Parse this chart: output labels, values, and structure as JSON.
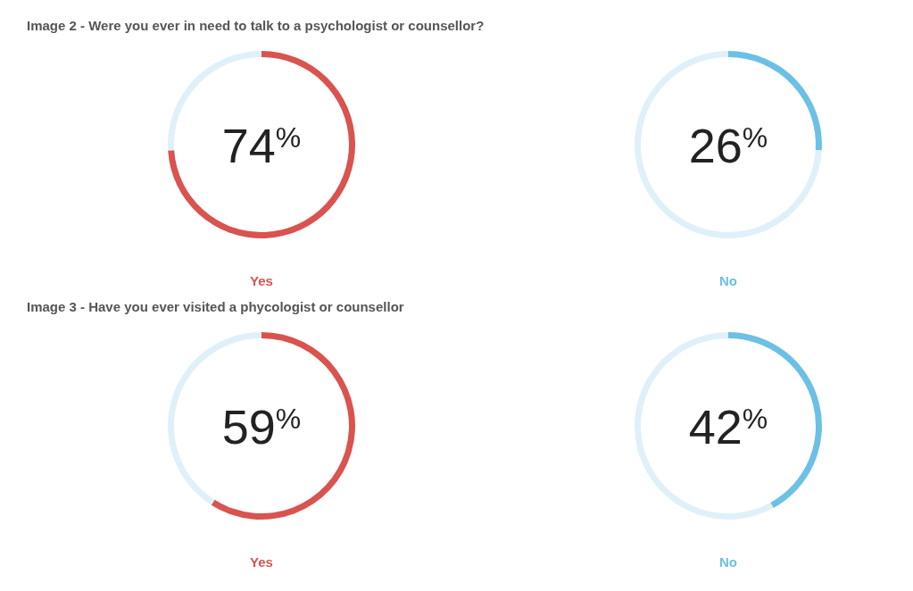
{
  "chart_data": [
    {
      "type": "donut",
      "title": "Image 2 - Were you ever in need to talk to a psychologist or counsellor?",
      "xlabel": "Yes",
      "categories": [
        null,
        null
      ],
      "values": [
        74,
        26
      ],
      "colors": [
        "#d9534f",
        "#dff0f8"
      ],
      "annotations": [
        "74$^{%}$"
      ]
    },
    {
      "type": "donut",
      "xlabel": "No",
      "categories": [
        null,
        null
      ],
      "values": [
        26,
        74
      ],
      "colors": [
        "#6cc0e5",
        "#dff0f8"
      ],
      "annotations": [
        "26$^{%}$"
      ]
    },
    {
      "type": "donut",
      "title": "Image 3 - Have you ever visited a phycologist or counsellor",
      "xlabel": "Yes",
      "categories": [
        null,
        null
      ],
      "values": [
        59,
        41
      ],
      "colors": [
        "#d9534f",
        "#dff0f8"
      ],
      "annotations": [
        "59$^{%}$"
      ]
    },
    {
      "type": "donut",
      "xlabel": "No",
      "categories": [
        null,
        null
      ],
      "values": [
        42,
        58
      ],
      "colors": [
        "#6cc0e5",
        "#dff0f8"
      ],
      "annotations": [
        "42$^{%}$"
      ]
    }
  ]
}
